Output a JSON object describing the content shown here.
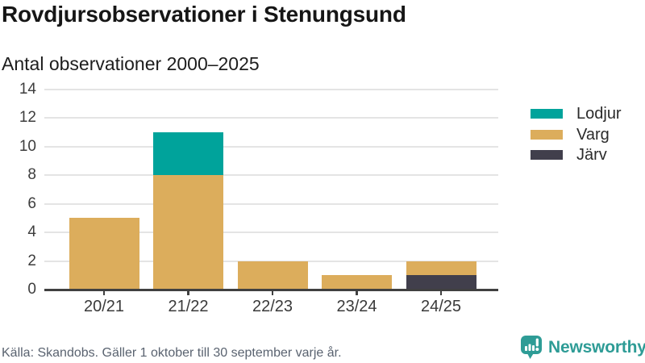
{
  "header": {
    "title": "Rovdjursobservationer i Stenungsund",
    "subtitle": "Antal observationer 2000–2025"
  },
  "chart_data": {
    "type": "bar",
    "stacked": true,
    "title": "Rovdjursobservationer i Stenungsund",
    "subtitle": "Antal observationer 2000–2025",
    "categories": [
      "20/21",
      "21/22",
      "22/23",
      "23/24",
      "24/25"
    ],
    "series": [
      {
        "name": "Lodjur",
        "color": "#00a39b",
        "values": [
          0,
          3,
          0,
          0,
          0
        ]
      },
      {
        "name": "Varg",
        "color": "#dcad5c",
        "values": [
          5,
          8,
          2,
          1,
          1
        ]
      },
      {
        "name": "Järv",
        "color": "#413f4c",
        "values": [
          0,
          0,
          0,
          0,
          1
        ]
      }
    ],
    "stack_order_bottom_to_top": [
      "Järv",
      "Varg",
      "Lodjur"
    ],
    "totals": [
      5,
      11,
      2,
      1,
      2
    ],
    "xlabel": "",
    "ylabel": "",
    "ylim": [
      0,
      14
    ],
    "yticks": [
      0,
      2,
      4,
      6,
      8,
      10,
      12,
      14
    ],
    "grid": true,
    "legend_position": "right"
  },
  "footer": {
    "source": "Källa: Skandobs. Gäller 1 oktober till 30 september varje år.",
    "brand": "Newsworthy",
    "brand_color": "#2e9c96"
  }
}
